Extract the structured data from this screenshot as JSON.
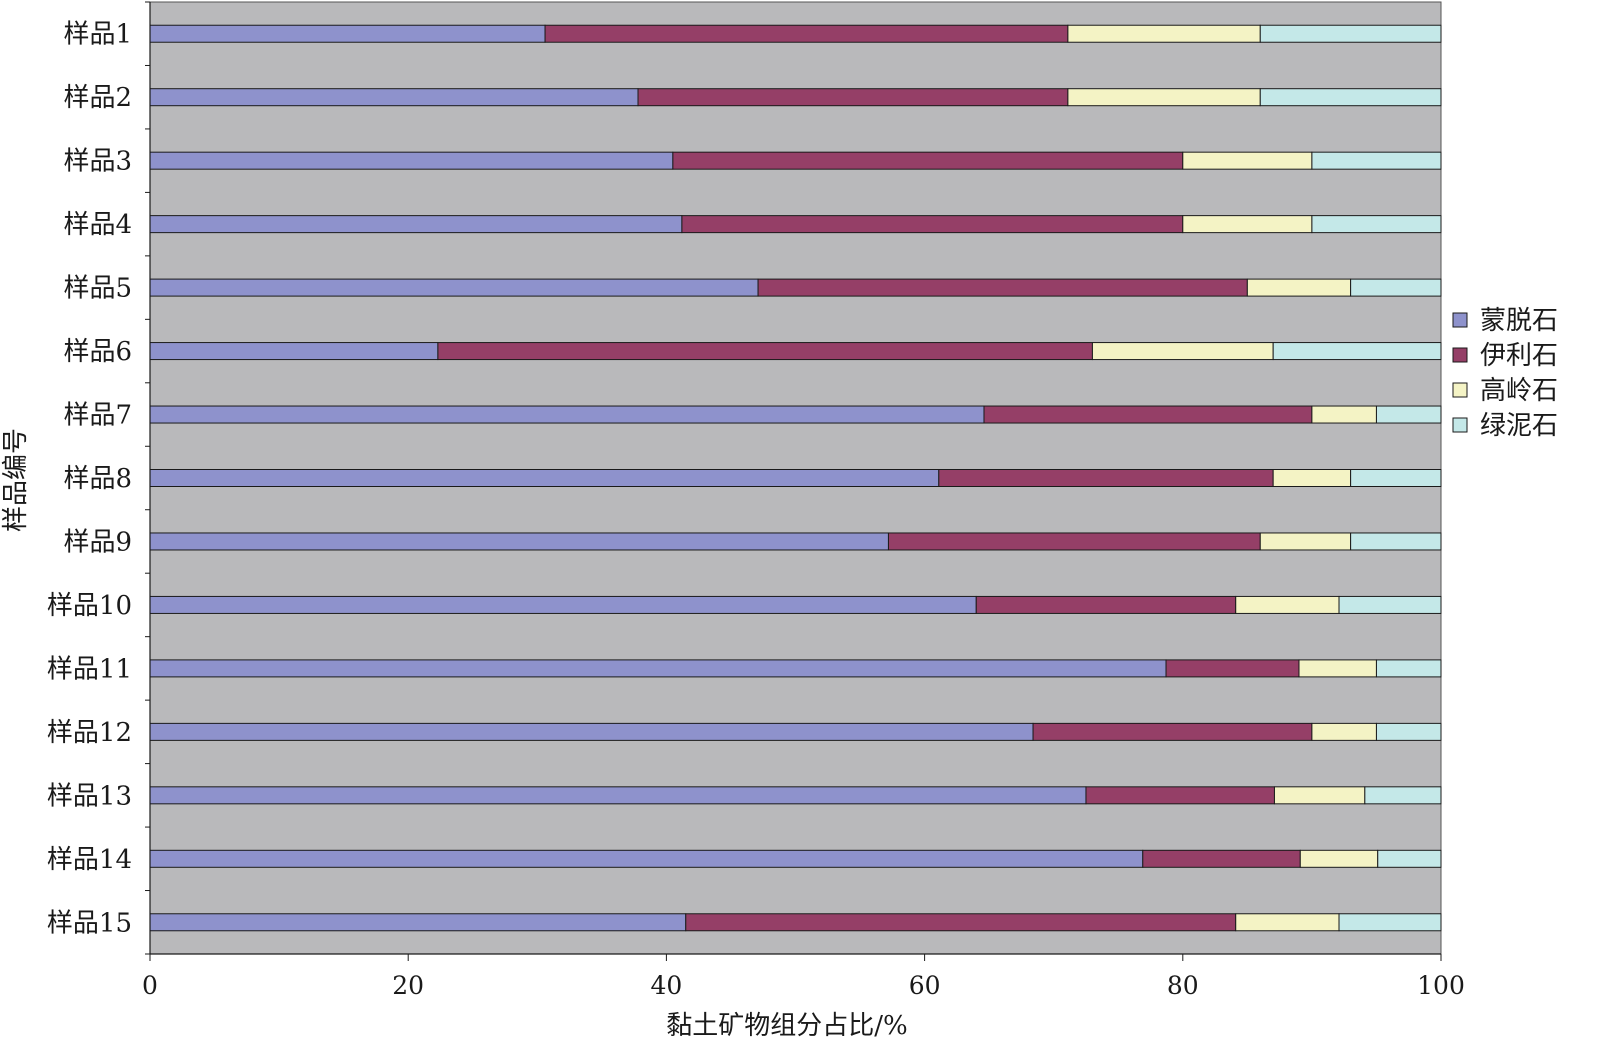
{
  "chart_data": {
    "type": "bar",
    "orientation": "horizontal",
    "stacked": true,
    "title": "",
    "xlabel": "黏土矿物组分占比/%",
    "ylabel": "样品编号",
    "xlim": [
      0,
      100
    ],
    "xticks": [
      0,
      20,
      40,
      60,
      80,
      100
    ],
    "grid": false,
    "legend_position": "right",
    "categories": [
      "样品1",
      "样品2",
      "样品3",
      "样品4",
      "样品5",
      "样品6",
      "样品7",
      "样品8",
      "样品9",
      "样品10",
      "样品11",
      "样品12",
      "样品13",
      "样品14",
      "样品15"
    ],
    "series": [
      {
        "name": "蒙脱石",
        "color": "#8e92cc",
        "values": [
          30.6,
          37.8,
          40.5,
          41.2,
          47.1,
          22.3,
          64.6,
          61.1,
          57.2,
          64.0,
          78.7,
          68.4,
          72.5,
          76.9,
          41.5
        ]
      },
      {
        "name": "伊利石",
        "color": "#953f67",
        "values": [
          40.5,
          33.3,
          39.5,
          38.8,
          37.9,
          50.7,
          25.4,
          25.9,
          28.8,
          20.1,
          10.3,
          21.6,
          14.6,
          12.2,
          42.6
        ]
      },
      {
        "name": "高岭石",
        "color": "#f4f3c5",
        "values": [
          14.9,
          14.9,
          10.0,
          10.0,
          8.0,
          14.0,
          5.0,
          6.0,
          7.0,
          8.0,
          6.0,
          5.0,
          7.0,
          6.0,
          8.0
        ]
      },
      {
        "name": "绿泥石",
        "color": "#c4e8e8",
        "values": [
          14.0,
          14.0,
          10.0,
          10.0,
          7.0,
          13.0,
          5.0,
          7.0,
          7.0,
          7.9,
          5.0,
          5.0,
          5.9,
          4.9,
          7.9
        ]
      }
    ],
    "plot_background": "#b9b9bb"
  }
}
